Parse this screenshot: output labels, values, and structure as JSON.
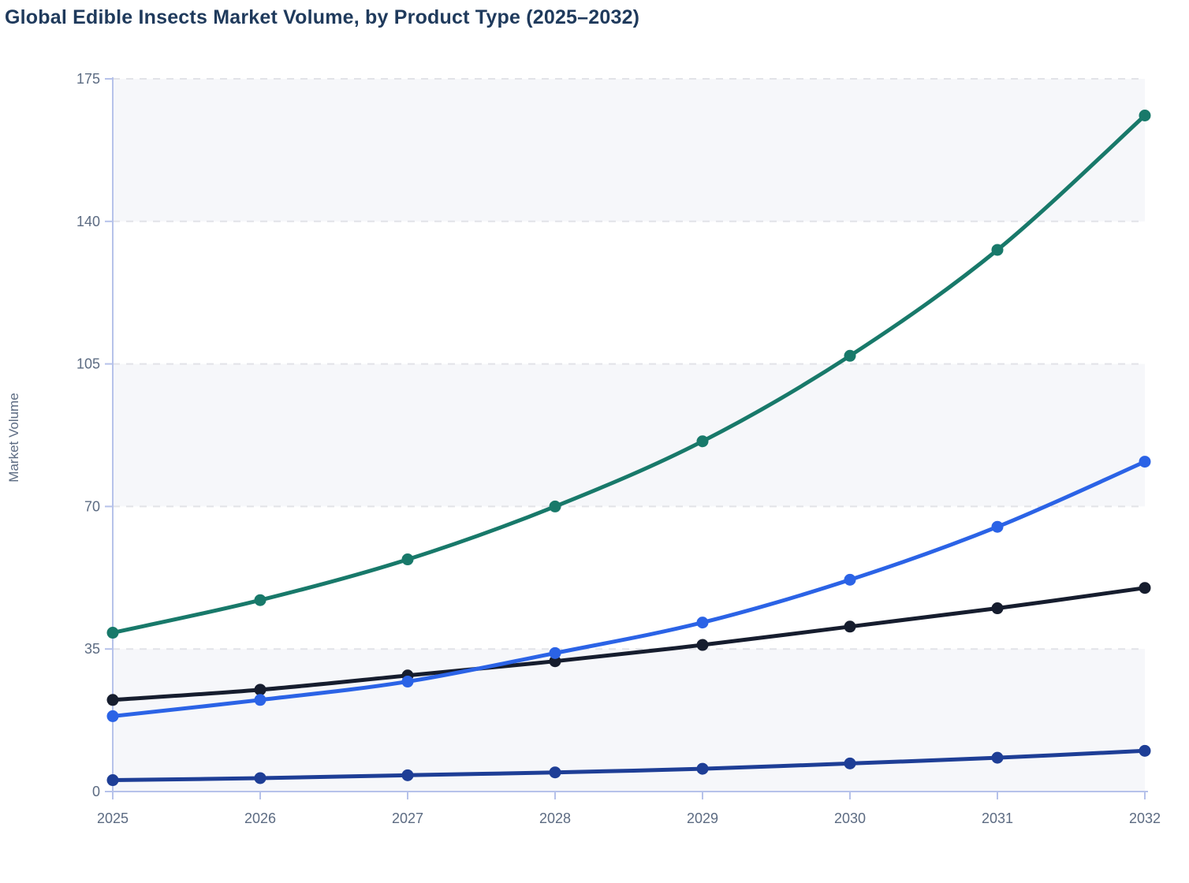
{
  "title": "Global Edible Insects Market Volume, by Product Type (2025–2032)",
  "colors": {
    "title_text": "#1f3a5c",
    "axis_line": "#b6c2ea",
    "tick_label": "#5c6b82",
    "gridline": "#e2e3e8",
    "band_fill": "#f6f7fa",
    "background": "#ffffff"
  },
  "chart_data": {
    "type": "line",
    "title": "Global Edible Insects Market Volume, by Product Type (2025–2032)",
    "xlabel": "",
    "ylabel": "Market Volume",
    "x": [
      2025,
      2026,
      2027,
      2028,
      2029,
      2030,
      2031,
      2032
    ],
    "ylim": [
      0,
      175
    ],
    "yticks": [
      0,
      35,
      70,
      105,
      140,
      175
    ],
    "grid": "horizontal-dashed",
    "legend_visible": false,
    "marker": "circle",
    "line_style": "smooth",
    "series": [
      {
        "name": "series-teal",
        "color": "#18796a",
        "values": [
          39,
          47,
          57,
          70,
          86,
          107,
          133,
          166
        ]
      },
      {
        "name": "series-blue",
        "color": "#2b63e6",
        "values": [
          18.5,
          22.5,
          27,
          34,
          41.5,
          52,
          65,
          81
        ]
      },
      {
        "name": "series-black",
        "color": "#161d2e",
        "values": [
          22.5,
          25,
          28.5,
          32,
          36,
          40.5,
          45,
          50
        ]
      },
      {
        "name": "series-navy",
        "color": "#1e3e96",
        "values": [
          2.8,
          3.3,
          4,
          4.7,
          5.6,
          6.9,
          8.3,
          10
        ]
      }
    ]
  }
}
